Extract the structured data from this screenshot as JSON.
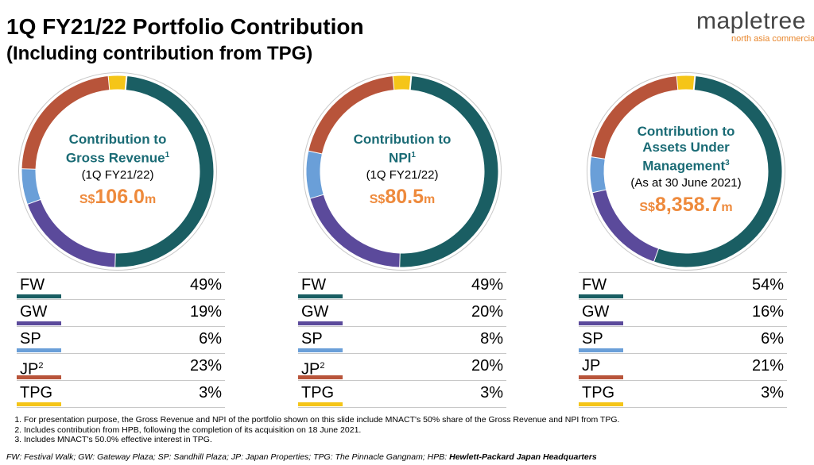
{
  "page": {
    "title": "1Q FY21/22 Portfolio Contribution",
    "subtitle": "(Including contribution from TPG)"
  },
  "logo": {
    "word": "mapletree",
    "sub": "north asia commercial"
  },
  "colors": {
    "FW": "#1a5e63",
    "GW": "#5b4a9b",
    "SP": "#6a9fd8",
    "JP": "#b8543a",
    "TPG": "#f5c518",
    "center_title": "#1a6b75",
    "center_value": "#ee8a3c"
  },
  "chart_data": [
    {
      "type": "pie",
      "title": "Contribution to Gross Revenue",
      "title_line1": "Contribution to",
      "title_line2": "Gross Revenue",
      "title_sup": "1",
      "period": "(1Q FY21/22)",
      "value_currency": "S$",
      "value_number": "106.0",
      "value_unit": "m",
      "categories": [
        "FW",
        "GW",
        "SP",
        "JP",
        "TPG"
      ],
      "labels": [
        "FW",
        "GW",
        "SP",
        "JP",
        "TPG"
      ],
      "label_sups": [
        "",
        "",
        "",
        "2",
        ""
      ],
      "values": [
        49,
        19,
        6,
        23,
        3
      ],
      "value_labels": [
        "49%",
        "19%",
        "6%",
        "23%",
        "3%"
      ]
    },
    {
      "type": "pie",
      "title": "Contribution to NPI",
      "title_line1": "Contribution to",
      "title_line2": "NPI",
      "title_sup": "1",
      "period": "(1Q FY21/22)",
      "value_currency": "S$",
      "value_number": "80.5",
      "value_unit": "m",
      "categories": [
        "FW",
        "GW",
        "SP",
        "JP",
        "TPG"
      ],
      "labels": [
        "FW",
        "GW",
        "SP",
        "JP",
        "TPG"
      ],
      "label_sups": [
        "",
        "",
        "",
        "2",
        ""
      ],
      "values": [
        49,
        20,
        8,
        20,
        3
      ],
      "value_labels": [
        "49%",
        "20%",
        "8%",
        "20%",
        "3%"
      ]
    },
    {
      "type": "pie",
      "title": "Contribution to Assets Under Management",
      "title_line1": "Contribution to",
      "title_line2": "Assets Under",
      "title_line3": "Management",
      "title_sup": "3",
      "period": "(As at 30 June 2021)",
      "value_currency": "S$",
      "value_number": "8,358.7",
      "value_unit": "m",
      "categories": [
        "FW",
        "GW",
        "SP",
        "JP",
        "TPG"
      ],
      "labels": [
        "FW",
        "GW",
        "SP",
        "JP",
        "TPG"
      ],
      "label_sups": [
        "",
        "",
        "",
        "",
        ""
      ],
      "values": [
        54,
        16,
        6,
        21,
        3
      ],
      "value_labels": [
        "54%",
        "16%",
        "6%",
        "21%",
        "3%"
      ]
    }
  ],
  "footnotes": [
    "For presentation purpose, the Gross Revenue and NPI of the portfolio shown on this slide include MNACT's 50% share of the Gross Revenue and NPI from TPG.",
    "Includes contribution from HPB, following the completion of its acquisition on 18 June 2021.",
    "Includes MNACT's 50.0% effective interest in TPG."
  ],
  "abbreviations": {
    "text": "FW: Festival Walk; GW: Gateway Plaza; SP: Sandhill Plaza; JP: Japan Properties; TPG: The Pinnacle Gangnam; HPB: ",
    "last": "Hewlett-Packard Japan Headquarters"
  }
}
